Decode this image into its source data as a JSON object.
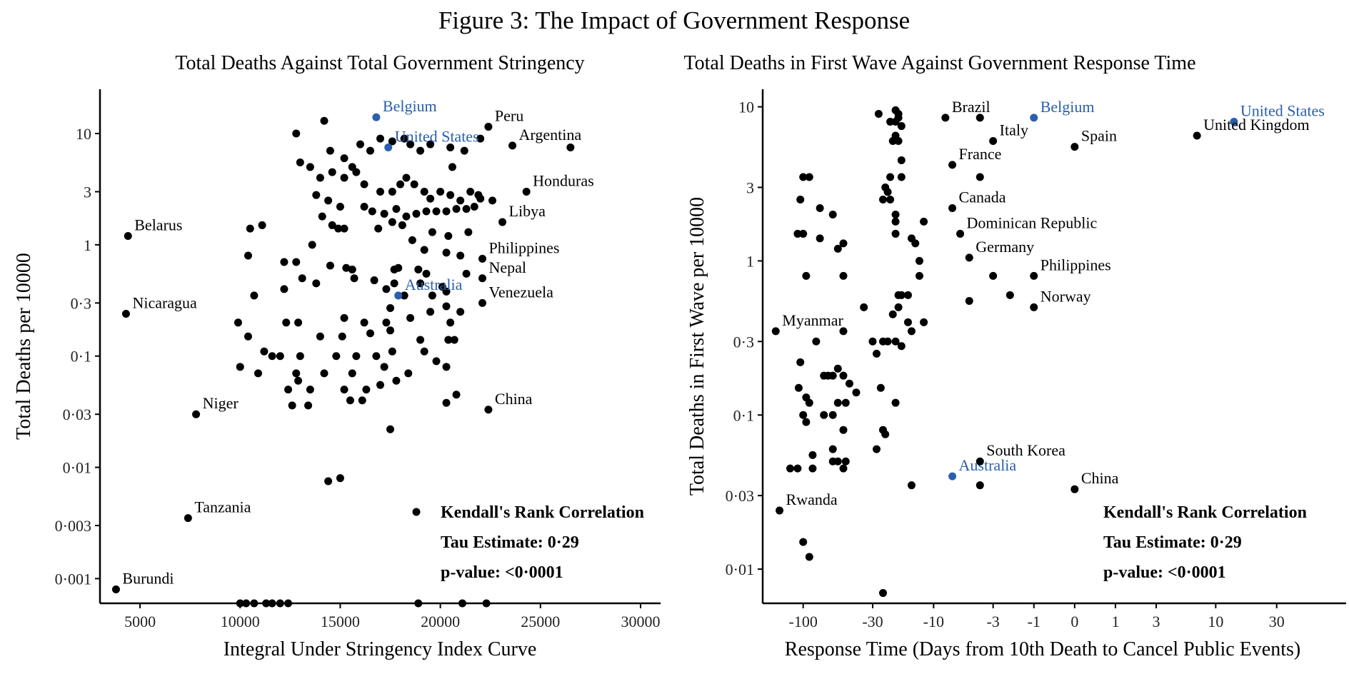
{
  "figure_title": "Figure 3: The Impact of Government Response",
  "colors": {
    "point": "#000000",
    "highlight": "#2a5fad",
    "axis": "#000000"
  },
  "chart_data": [
    {
      "type": "scatter",
      "title": "Total Deaths Against Total Government Stringency",
      "xlabel": "Integral Under Stringency Index Curve",
      "ylabel": "Total Deaths per 10000",
      "x_scale": "linear",
      "y_scale": "log10",
      "xlim": [
        3000,
        31000
      ],
      "ylim": [
        0.0006,
        25
      ],
      "x_ticks": [
        5000,
        10000,
        15000,
        20000,
        25000,
        30000
      ],
      "x_tick_labels": [
        "5000",
        "10000",
        "15000",
        "20000",
        "25000",
        "30000"
      ],
      "y_ticks": [
        0.001,
        0.003,
        0.01,
        0.03,
        0.1,
        0.3,
        1,
        3,
        10
      ],
      "y_tick_labels": [
        "0·001",
        "0·003",
        "0·01",
        "0·03",
        "0·1",
        "0·3",
        "1",
        "3",
        "10"
      ],
      "grid": false,
      "legend": "bottom-right",
      "stats": {
        "marker": "point",
        "title": "Kendall's Rank Correlation",
        "tau": "Tau Estimate: 0·29",
        "p": "p-value: <0·0001"
      },
      "labeled_points": [
        {
          "label": "Belgium",
          "x": 16800,
          "y": 14,
          "highlight": true
        },
        {
          "label": "United States",
          "x": 17400,
          "y": 7.5,
          "highlight": true
        },
        {
          "label": "Australia",
          "x": 17900,
          "y": 0.35,
          "highlight": true
        },
        {
          "label": "Peru",
          "x": 22400,
          "y": 11.5,
          "highlight": false
        },
        {
          "label": "Argentina",
          "x": 23600,
          "y": 7.8,
          "highlight": false
        },
        {
          "label": "Honduras",
          "x": 24300,
          "y": 3.0,
          "highlight": false
        },
        {
          "label": "Libya",
          "x": 23100,
          "y": 1.6,
          "highlight": false
        },
        {
          "label": "Belarus",
          "x": 4400,
          "y": 1.2,
          "highlight": false
        },
        {
          "label": "Philippines",
          "x": 22100,
          "y": 0.75,
          "highlight": false
        },
        {
          "label": "Nepal",
          "x": 22100,
          "y": 0.5,
          "highlight": false
        },
        {
          "label": "Venezuela",
          "x": 22100,
          "y": 0.3,
          "highlight": false
        },
        {
          "label": "Nicaragua",
          "x": 4300,
          "y": 0.24,
          "highlight": false
        },
        {
          "label": "Niger",
          "x": 7800,
          "y": 0.03,
          "highlight": false
        },
        {
          "label": "China",
          "x": 22400,
          "y": 0.033,
          "highlight": false
        },
        {
          "label": "Tanzania",
          "x": 7400,
          "y": 0.0035,
          "highlight": false
        },
        {
          "label": "Burundi",
          "x": 3800,
          "y": 0.0008,
          "highlight": false
        }
      ],
      "points": [
        [
          14200,
          13
        ],
        [
          12800,
          10
        ],
        [
          13000,
          5.5
        ],
        [
          13500,
          5
        ],
        [
          14500,
          7
        ],
        [
          15200,
          6
        ],
        [
          15600,
          5
        ],
        [
          16000,
          8
        ],
        [
          16500,
          7
        ],
        [
          17000,
          9
        ],
        [
          17600,
          8.5
        ],
        [
          18200,
          9
        ],
        [
          19000,
          7
        ],
        [
          19500,
          8
        ],
        [
          20500,
          7.5
        ],
        [
          21200,
          7
        ],
        [
          14000,
          4
        ],
        [
          14600,
          4.5
        ],
        [
          15200,
          4
        ],
        [
          15800,
          4.5
        ],
        [
          16200,
          3.5
        ],
        [
          17000,
          3
        ],
        [
          17600,
          3
        ],
        [
          18000,
          3.5
        ],
        [
          18300,
          4
        ],
        [
          18700,
          3.5
        ],
        [
          19200,
          3
        ],
        [
          19500,
          2.6
        ],
        [
          20000,
          3
        ],
        [
          20500,
          2.8
        ],
        [
          21000,
          2.5
        ],
        [
          21500,
          3
        ],
        [
          21900,
          2.8
        ],
        [
          13800,
          2.8
        ],
        [
          14400,
          2.5
        ],
        [
          15000,
          2.2
        ],
        [
          16200,
          2.2
        ],
        [
          16600,
          2.0
        ],
        [
          17200,
          1.9
        ],
        [
          17800,
          2.1
        ],
        [
          18300,
          1.8
        ],
        [
          18800,
          1.9
        ],
        [
          19300,
          2.0
        ],
        [
          19800,
          2.0
        ],
        [
          20300,
          2.0
        ],
        [
          20800,
          2.1
        ],
        [
          21300,
          2.1
        ],
        [
          21700,
          2.2
        ],
        [
          22000,
          2.6
        ],
        [
          10500,
          1.4
        ],
        [
          11100,
          1.5
        ],
        [
          14100,
          1.8
        ],
        [
          14600,
          1.5
        ],
        [
          14900,
          1.4
        ],
        [
          15200,
          1.4
        ],
        [
          16900,
          1.4
        ],
        [
          17600,
          1.6
        ],
        [
          18100,
          1.5
        ],
        [
          19600,
          1.3
        ],
        [
          20400,
          1.2
        ],
        [
          21400,
          1.3
        ],
        [
          13600,
          1.0
        ],
        [
          18600,
          1.1
        ],
        [
          19200,
          0.9
        ],
        [
          20300,
          0.85
        ],
        [
          21000,
          0.8
        ],
        [
          10400,
          0.8
        ],
        [
          12200,
          0.7
        ],
        [
          12800,
          0.7
        ],
        [
          14500,
          0.65
        ],
        [
          15300,
          0.62
        ],
        [
          15600,
          0.6
        ],
        [
          17700,
          0.6
        ],
        [
          17900,
          0.62
        ],
        [
          18900,
          0.6
        ],
        [
          19300,
          0.55
        ],
        [
          21300,
          0.55
        ],
        [
          13100,
          0.5
        ],
        [
          13800,
          0.45
        ],
        [
          15700,
          0.5
        ],
        [
          16700,
          0.48
        ],
        [
          17700,
          0.45
        ],
        [
          10700,
          0.35
        ],
        [
          12200,
          0.4
        ],
        [
          17300,
          0.4
        ],
        [
          18200,
          0.35
        ],
        [
          19600,
          0.35
        ],
        [
          20300,
          0.38
        ],
        [
          17500,
          0.27
        ],
        [
          9900,
          0.2
        ],
        [
          12300,
          0.2
        ],
        [
          12900,
          0.2
        ],
        [
          15200,
          0.22
        ],
        [
          16200,
          0.2
        ],
        [
          17300,
          0.2
        ],
        [
          18500,
          0.22
        ],
        [
          19500,
          0.25
        ],
        [
          20500,
          0.2
        ],
        [
          21000,
          0.25
        ],
        [
          20300,
          0.28
        ],
        [
          10400,
          0.15
        ],
        [
          14000,
          0.15
        ],
        [
          15100,
          0.15
        ],
        [
          16500,
          0.16
        ],
        [
          17500,
          0.17
        ],
        [
          19000,
          0.14
        ],
        [
          20400,
          0.14
        ],
        [
          13000,
          0.1
        ],
        [
          14800,
          0.1
        ],
        [
          15800,
          0.1
        ],
        [
          16800,
          0.1
        ],
        [
          17600,
          0.11
        ],
        [
          19200,
          0.11
        ],
        [
          20700,
          0.14
        ],
        [
          12000,
          0.1
        ],
        [
          11200,
          0.11
        ],
        [
          10000,
          0.08
        ],
        [
          10900,
          0.07
        ],
        [
          11600,
          0.1
        ],
        [
          12800,
          0.07
        ],
        [
          14200,
          0.07
        ],
        [
          15600,
          0.07
        ],
        [
          17200,
          0.08
        ],
        [
          18400,
          0.07
        ],
        [
          19800,
          0.09
        ],
        [
          20300,
          0.08
        ],
        [
          12900,
          0.06
        ],
        [
          12400,
          0.05
        ],
        [
          13500,
          0.05
        ],
        [
          15200,
          0.05
        ],
        [
          16300,
          0.05
        ],
        [
          17800,
          0.06
        ],
        [
          17000,
          0.055
        ],
        [
          16100,
          0.04
        ],
        [
          15500,
          0.04
        ],
        [
          12600,
          0.036
        ],
        [
          13400,
          0.036
        ],
        [
          20300,
          0.038
        ],
        [
          20800,
          0.045
        ],
        [
          17500,
          0.022
        ],
        [
          14400,
          0.0075
        ],
        [
          15000,
          0.008
        ],
        [
          10000,
          0.0006
        ],
        [
          10300,
          0.0006
        ],
        [
          10700,
          0.0006
        ],
        [
          11300,
          0.0006
        ],
        [
          11600,
          0.0006
        ],
        [
          12000,
          0.0006
        ],
        [
          12400,
          0.0006
        ],
        [
          18900,
          0.0006
        ],
        [
          21100,
          0.0006
        ],
        [
          22300,
          0.0006
        ],
        [
          26500,
          7.5
        ],
        [
          22000,
          9
        ],
        [
          18500,
          8
        ],
        [
          20600,
          5
        ],
        [
          22600,
          2.5
        ],
        [
          19000,
          0.45
        ],
        [
          20100,
          0.42
        ]
      ]
    },
    {
      "type": "scatter",
      "title": "Total Deaths in First Wave Against Government Response Time",
      "xlabel": "Response Time (Days from 10th Death to Cancel Public Events)",
      "ylabel": "Total Deaths in First Wave per 10000",
      "x_scale": "pseudo-log",
      "y_scale": "log10",
      "xlim": [
        -200,
        100
      ],
      "ylim": [
        0.006,
        13
      ],
      "x_ticks": [
        -100,
        -30,
        -10,
        -3,
        -1,
        0,
        1,
        3,
        10,
        30
      ],
      "x_tick_labels": [
        "-100",
        "-30",
        "-10",
        "-3",
        "-1",
        "0",
        "1",
        "3",
        "10",
        "30"
      ],
      "y_ticks": [
        0.01,
        0.03,
        0.1,
        0.3,
        1,
        3,
        10
      ],
      "y_tick_labels": [
        "0·01",
        "0·03",
        "0·1",
        "0·3",
        "1",
        "3",
        "10"
      ],
      "grid": false,
      "legend": "bottom-right",
      "stats": {
        "title": "Kendall's Rank Correlation",
        "tau": "Tau Estimate: 0·29",
        "p": "p-value: <0·0001"
      },
      "labeled_points": [
        {
          "label": "Belgium",
          "x": -1,
          "y": 8.5,
          "highlight": true
        },
        {
          "label": "United States",
          "x": 14,
          "y": 8.0,
          "highlight": true
        },
        {
          "label": "Australia",
          "x": -7,
          "y": 0.04,
          "highlight": true
        },
        {
          "label": "Brazil",
          "x": -8,
          "y": 8.5,
          "highlight": false
        },
        {
          "label": "Italy",
          "x": -3,
          "y": 6.0,
          "highlight": false
        },
        {
          "label": "Spain",
          "x": 0,
          "y": 5.5,
          "highlight": false
        },
        {
          "label": "United Kingdom",
          "x": 7,
          "y": 6.5,
          "highlight": false
        },
        {
          "label": "France",
          "x": -7,
          "y": 4.2,
          "highlight": false
        },
        {
          "label": "Canada",
          "x": -7,
          "y": 2.2,
          "highlight": false
        },
        {
          "label": "Dominican Republic",
          "x": -6,
          "y": 1.5,
          "highlight": false
        },
        {
          "label": "Germany",
          "x": -5,
          "y": 1.05,
          "highlight": false
        },
        {
          "label": "Philippines",
          "x": -1,
          "y": 0.8,
          "highlight": false
        },
        {
          "label": "Norway",
          "x": -1,
          "y": 0.5,
          "highlight": false
        },
        {
          "label": "Myanmar",
          "x": -160,
          "y": 0.35,
          "highlight": false
        },
        {
          "label": "South Korea",
          "x": -4,
          "y": 0.05,
          "highlight": false
        },
        {
          "label": "China",
          "x": 0,
          "y": 0.033,
          "highlight": false
        },
        {
          "label": "Rwanda",
          "x": -150,
          "y": 0.024,
          "highlight": false
        }
      ],
      "points": [
        [
          -27,
          9
        ],
        [
          -22,
          8
        ],
        [
          -20,
          8
        ],
        [
          -20,
          9.5
        ],
        [
          -19,
          9
        ],
        [
          -18,
          7.5
        ],
        [
          -19,
          8.5
        ],
        [
          -21,
          6
        ],
        [
          -20,
          6.5
        ],
        [
          -19,
          6
        ],
        [
          -18,
          4.5
        ],
        [
          -4,
          8.5
        ],
        [
          -18,
          3.5
        ],
        [
          -22,
          3.5
        ],
        [
          -23,
          2.8
        ],
        [
          -24,
          3.0
        ],
        [
          -22,
          2.5
        ],
        [
          -25,
          2.5
        ],
        [
          -20,
          2.0
        ],
        [
          -20,
          1.8
        ],
        [
          -20,
          1.5
        ],
        [
          -15,
          1.4
        ],
        [
          -14,
          1.3
        ],
        [
          -12,
          1.8
        ],
        [
          -4,
          3.5
        ],
        [
          -100,
          3.5
        ],
        [
          -90,
          3.5
        ],
        [
          -105,
          2.5
        ],
        [
          -75,
          2.2
        ],
        [
          -60,
          2.0
        ],
        [
          -110,
          1.5
        ],
        [
          -100,
          1.5
        ],
        [
          -75,
          1.4
        ],
        [
          -55,
          1.2
        ],
        [
          -50,
          1.3
        ],
        [
          -95,
          0.8
        ],
        [
          -50,
          0.8
        ],
        [
          -13,
          0.8
        ],
        [
          -13,
          1.0
        ],
        [
          -18,
          0.6
        ],
        [
          -19,
          0.6
        ],
        [
          -16,
          0.6
        ],
        [
          -5,
          0.55
        ],
        [
          -3,
          0.8
        ],
        [
          -2,
          0.6
        ],
        [
          -35,
          0.5
        ],
        [
          -19,
          0.5
        ],
        [
          -21,
          0.45
        ],
        [
          -16,
          0.4
        ],
        [
          -12,
          0.4
        ],
        [
          -50,
          0.35
        ],
        [
          -80,
          0.3
        ],
        [
          -30,
          0.3
        ],
        [
          -28,
          0.25
        ],
        [
          -25,
          0.3
        ],
        [
          -23,
          0.3
        ],
        [
          -20,
          0.3
        ],
        [
          -18,
          0.28
        ],
        [
          -15,
          0.35
        ],
        [
          -105,
          0.22
        ],
        [
          -70,
          0.18
        ],
        [
          -65,
          0.18
        ],
        [
          -60,
          0.18
        ],
        [
          -55,
          0.2
        ],
        [
          -50,
          0.18
        ],
        [
          -45,
          0.16
        ],
        [
          -40,
          0.14
        ],
        [
          -108,
          0.15
        ],
        [
          -95,
          0.13
        ],
        [
          -90,
          0.12
        ],
        [
          -100,
          0.1
        ],
        [
          -95,
          0.09
        ],
        [
          -55,
          0.12
        ],
        [
          -70,
          0.1
        ],
        [
          -60,
          0.1
        ],
        [
          -48,
          0.12
        ],
        [
          -26,
          0.15
        ],
        [
          -20,
          0.12
        ],
        [
          -50,
          0.08
        ],
        [
          -25,
          0.08
        ],
        [
          -24,
          0.075
        ],
        [
          -28,
          0.06
        ],
        [
          -60,
          0.06
        ],
        [
          -60,
          0.05
        ],
        [
          -55,
          0.05
        ],
        [
          -50,
          0.045
        ],
        [
          -48,
          0.05
        ],
        [
          -85,
          0.055
        ],
        [
          -85,
          0.045
        ],
        [
          -110,
          0.045
        ],
        [
          -125,
          0.045
        ],
        [
          -15,
          0.035
        ],
        [
          -4,
          0.035
        ],
        [
          -100,
          0.015
        ],
        [
          -90,
          0.012
        ],
        [
          -25,
          0.007
        ]
      ]
    }
  ]
}
